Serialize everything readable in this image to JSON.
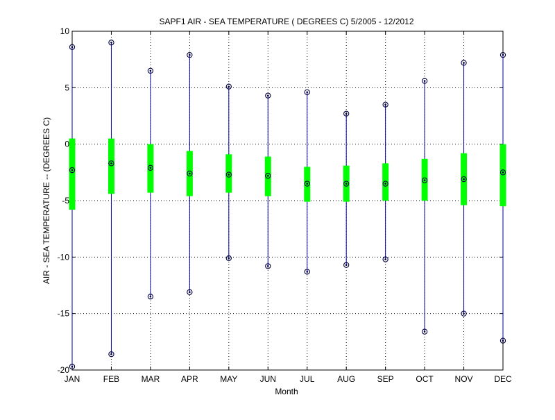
{
  "chart_data": {
    "type": "boxplot",
    "title": "SAPF1  AIR - SEA TEMPERATURE ( DEGREES C) 5/2005 - 12/2012",
    "xlabel": "Month",
    "ylabel": "AIR - SEA TEMPERATURE -- (DEGREES C)",
    "ylim": [
      -20,
      10
    ],
    "yticks": [
      -20,
      -15,
      -10,
      -5,
      0,
      5,
      10
    ],
    "grid": true,
    "categories": [
      "JAN",
      "FEB",
      "MAR",
      "APR",
      "MAY",
      "JUN",
      "JUL",
      "AUG",
      "SEP",
      "OCT",
      "NOV",
      "DEC"
    ],
    "max": [
      8.6,
      9.0,
      6.5,
      7.9,
      5.1,
      4.3,
      4.6,
      2.7,
      3.5,
      5.6,
      7.2,
      7.9
    ],
    "q3": [
      0.5,
      0.5,
      0.0,
      -0.6,
      -0.9,
      -1.1,
      -2.0,
      -1.9,
      -1.7,
      -1.3,
      -0.8,
      0.0
    ],
    "median": [
      -2.3,
      -1.7,
      -2.1,
      -2.6,
      -2.7,
      -2.8,
      -3.5,
      -3.5,
      -3.5,
      -3.2,
      -3.1,
      -2.5
    ],
    "q1": [
      -5.8,
      -4.4,
      -4.3,
      -4.6,
      -4.3,
      -4.6,
      -5.1,
      -5.1,
      -5.0,
      -5.0,
      -5.4,
      -5.5
    ],
    "min": [
      -19.7,
      -18.6,
      -13.5,
      -13.1,
      -10.1,
      -10.8,
      -11.3,
      -10.7,
      -10.2,
      -16.6,
      -15.0,
      -17.4
    ],
    "colors": {
      "whisker": "#0000a0",
      "box": "#00ff00",
      "marker": "#000040",
      "grid": "#000000",
      "axes": "#000000"
    }
  }
}
